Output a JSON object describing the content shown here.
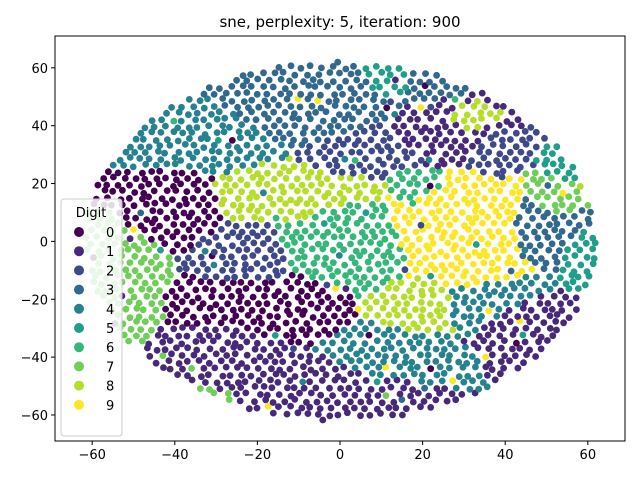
{
  "chart_data": {
    "type": "scatter",
    "title": "sne, perplexity: 5, iteration: 900",
    "xlabel": "",
    "ylabel": "",
    "xlim": [
      -69,
      69
    ],
    "ylim": [
      -69,
      71
    ],
    "xticks": [
      -60,
      -40,
      -20,
      0,
      20,
      40,
      60
    ],
    "yticks": [
      -60,
      -40,
      -20,
      0,
      20,
      40,
      60
    ],
    "grid": false,
    "legend": {
      "title": "Digit",
      "placement": "lower-left"
    },
    "series": [
      {
        "name": "0",
        "color": "#440154",
        "regions": [
          {
            "cx": -42,
            "cy": 12,
            "rx": 14,
            "ry": 10
          },
          {
            "cx": -20,
            "cy": -20,
            "rx": 14,
            "ry": 9
          },
          {
            "cx": -12,
            "cy": -28,
            "rx": 8,
            "ry": 6
          }
        ]
      },
      {
        "name": "1",
        "color": "#482878",
        "regions": [
          {
            "cx": -28,
            "cy": -40,
            "rx": 14,
            "ry": 8
          },
          {
            "cx": -6,
            "cy": -50,
            "rx": 12,
            "ry": 7
          },
          {
            "cx": 25,
            "cy": 38,
            "rx": 10,
            "ry": 9
          },
          {
            "cx": 45,
            "cy": -25,
            "rx": 9,
            "ry": 8
          }
        ]
      },
      {
        "name": "2",
        "color": "#3e4989",
        "regions": [
          {
            "cx": -22,
            "cy": -6,
            "rx": 10,
            "ry": 12
          },
          {
            "cx": 8,
            "cy": 30,
            "rx": 10,
            "ry": 8
          },
          {
            "cx": 38,
            "cy": 30,
            "rx": 6,
            "ry": 6
          }
        ]
      },
      {
        "name": "3",
        "color": "#31688e",
        "regions": [
          {
            "cx": -5,
            "cy": 48,
            "rx": 16,
            "ry": 9
          },
          {
            "cx": 18,
            "cy": 55,
            "rx": 10,
            "ry": 5
          },
          {
            "cx": 50,
            "cy": 5,
            "rx": 8,
            "ry": 10
          }
        ]
      },
      {
        "name": "4",
        "color": "#26828e",
        "regions": [
          {
            "cx": -38,
            "cy": 35,
            "rx": 14,
            "ry": 9
          },
          {
            "cx": 40,
            "cy": -20,
            "rx": 10,
            "ry": 8
          },
          {
            "cx": 10,
            "cy": -38,
            "rx": 10,
            "ry": 6
          }
        ]
      },
      {
        "name": "5",
        "color": "#1f9e89",
        "regions": [
          {
            "cx": 15,
            "cy": 55,
            "rx": 8,
            "ry": 5
          },
          {
            "cx": 58,
            "cy": -5,
            "rx": 4,
            "ry": 8
          },
          {
            "cx": 55,
            "cy": 25,
            "rx": 5,
            "ry": 5
          }
        ]
      },
      {
        "name": "6",
        "color": "#35b779",
        "regions": [
          {
            "cx": 0,
            "cy": 0,
            "rx": 16,
            "ry": 12
          },
          {
            "cx": 18,
            "cy": 20,
            "rx": 6,
            "ry": 5
          }
        ]
      },
      {
        "name": "7",
        "color": "#6ece58",
        "regions": [
          {
            "cx": -55,
            "cy": -10,
            "rx": 8,
            "ry": 20
          },
          {
            "cx": 52,
            "cy": 15,
            "rx": 6,
            "ry": 8
          },
          {
            "cx": -35,
            "cy": -55,
            "rx": 6,
            "ry": 4
          }
        ]
      },
      {
        "name": "8",
        "color": "#b5de2b",
        "regions": [
          {
            "cx": -16,
            "cy": 14,
            "rx": 14,
            "ry": 8
          },
          {
            "cx": 0,
            "cy": 18,
            "rx": 10,
            "ry": 5
          },
          {
            "cx": 18,
            "cy": -22,
            "rx": 7,
            "ry": 7
          },
          {
            "cx": 30,
            "cy": 42,
            "rx": 6,
            "ry": 5
          }
        ]
      },
      {
        "name": "9",
        "color": "#fde725",
        "regions": [
          {
            "cx": 28,
            "cy": 5,
            "rx": 16,
            "ry": 14
          },
          {
            "cx": 35,
            "cy": -10,
            "rx": 8,
            "ry": 6
          }
        ]
      }
    ]
  }
}
